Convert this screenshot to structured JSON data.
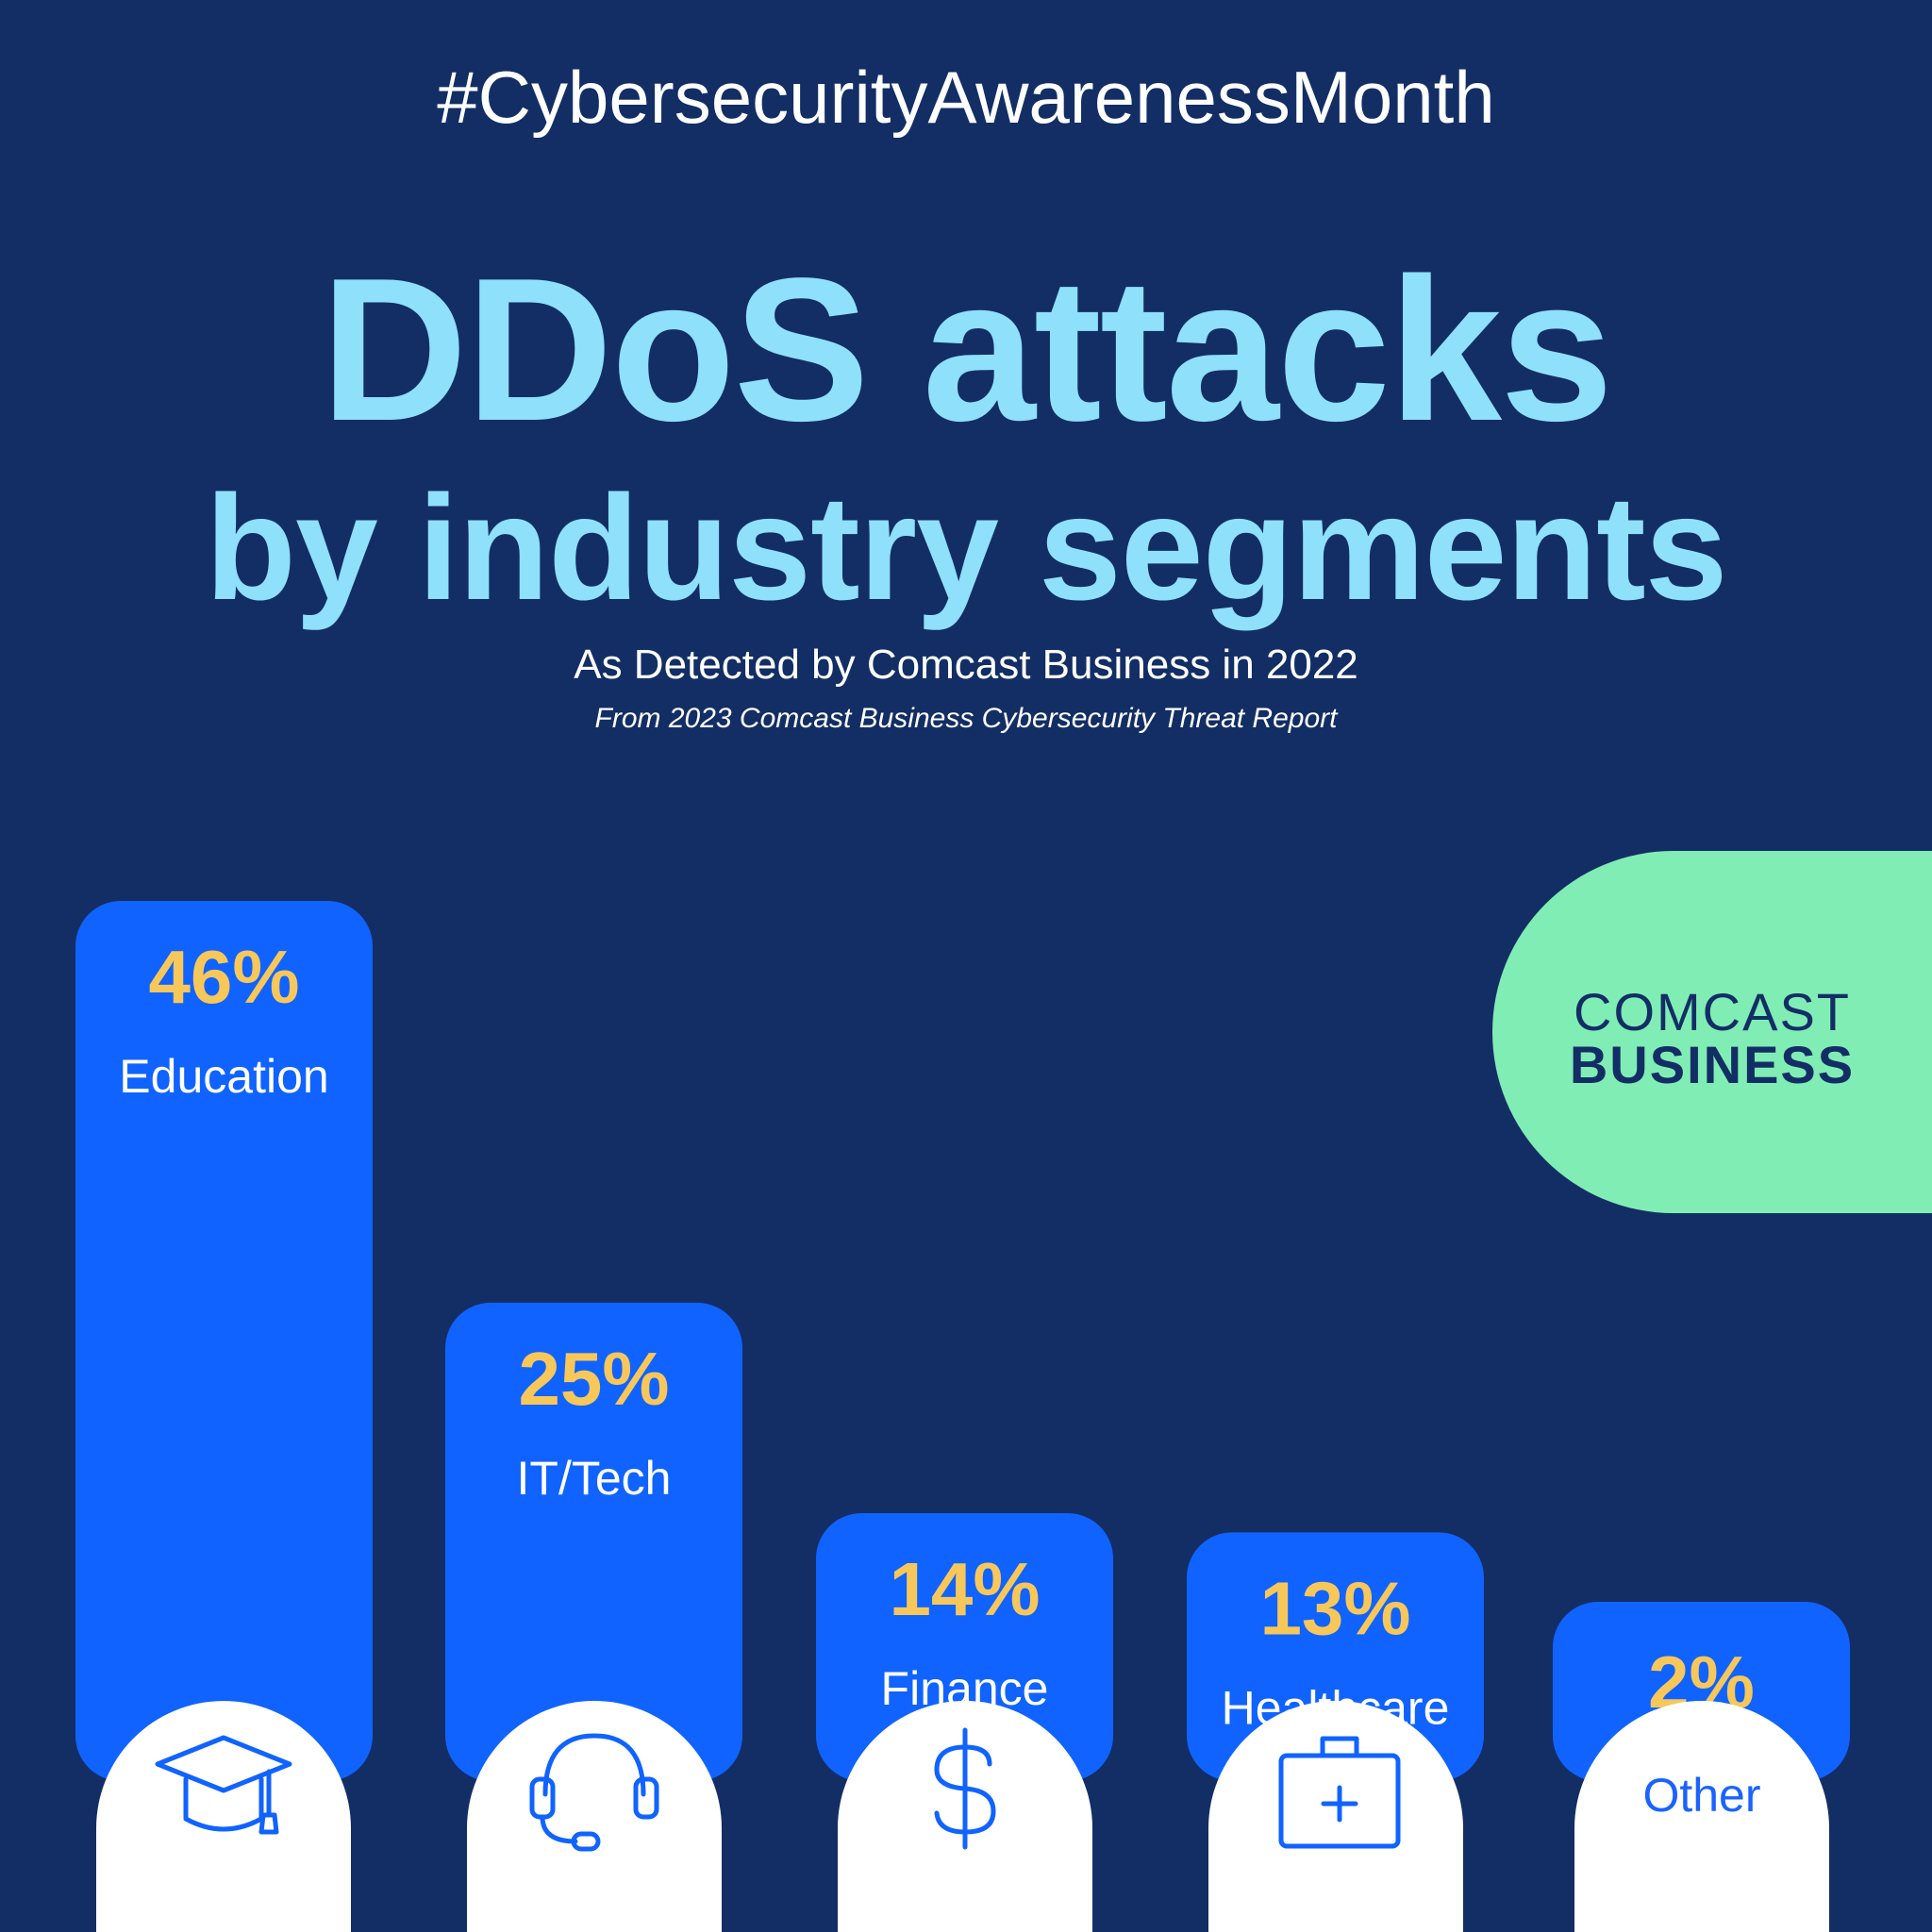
{
  "hashtag": "#CybersecurityAwarenessMonth",
  "title_line1": "DDoS attacks",
  "title_line2": "by industry segments",
  "subtitle": "As Detected by Comcast Business in 2022",
  "source": "From 2023 Comcast Business Cybersecurity Threat Report",
  "logo": {
    "line1": "COMCAST",
    "line2": "BUSINESS"
  },
  "colors": {
    "background": "#132e65",
    "bar": "#1063ff",
    "value": "#f8c75a",
    "title": "#8fe0fa",
    "logo_bg": "#80edb5"
  },
  "chart_data": {
    "type": "bar",
    "categories": [
      "Education",
      "IT/Tech",
      "Finance",
      "Healthcare",
      "Other"
    ],
    "values": [
      46,
      25,
      14,
      13,
      2
    ],
    "value_labels": [
      "46%",
      "25%",
      "14%",
      "13%",
      "2%"
    ],
    "icons": [
      "graduation-cap-icon",
      "headset-icon",
      "dollar-icon",
      "medical-kit-icon",
      ""
    ],
    "title": "DDoS attacks by industry segments",
    "xlabel": "",
    "ylabel": "",
    "ylim": [
      0,
      46
    ]
  }
}
